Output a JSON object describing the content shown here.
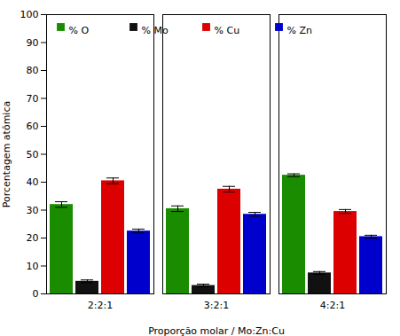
{
  "chart_data": {
    "type": "bar",
    "xlabel": "Proporção molar / Mo:Zn:Cu",
    "ylabel": "Porcentagem atômica",
    "categories": [
      "2:2:1",
      "3:2:1",
      "4:2:1"
    ],
    "series": [
      {
        "name": "% O",
        "color": "#1a8c00",
        "values": [
          32.0,
          30.5,
          42.5
        ],
        "errors": [
          1.0,
          1.0,
          0.5
        ]
      },
      {
        "name": "% Mo",
        "color": "#111111",
        "values": [
          4.5,
          3.0,
          7.5
        ],
        "errors": [
          0.5,
          0.5,
          0.5
        ]
      },
      {
        "name": "% Cu",
        "color": "#dd0000",
        "values": [
          40.5,
          37.5,
          29.5
        ],
        "errors": [
          1.0,
          1.0,
          0.7
        ]
      },
      {
        "name": "% Zn",
        "color": "#0000cc",
        "values": [
          22.5,
          28.5,
          20.5
        ],
        "errors": [
          0.7,
          0.7,
          0.5
        ]
      }
    ],
    "ylim": [
      0,
      100
    ],
    "yticks": [
      0,
      10,
      20,
      30,
      40,
      50,
      60,
      70,
      80,
      90,
      100
    ],
    "grid": false,
    "legend": "upper left"
  }
}
